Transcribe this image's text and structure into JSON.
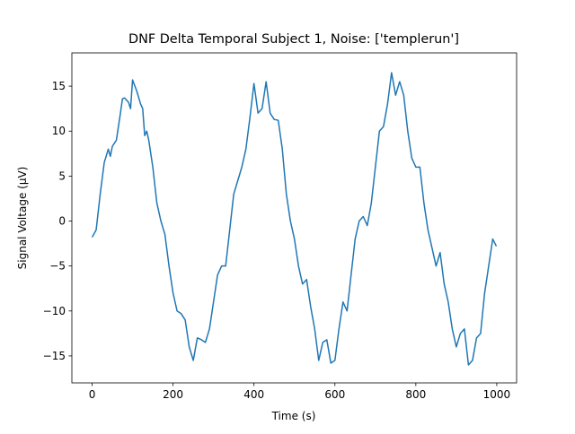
{
  "chart_data": {
    "type": "line",
    "title": "DNF Delta Temporal Subject 1, Noise: ['templerun']",
    "x_label": "Time (s)",
    "y_label": "Signal Voltage (μV)",
    "x": [
      0,
      10,
      20,
      30,
      40,
      45,
      50,
      60,
      70,
      75,
      80,
      90,
      95,
      100,
      110,
      120,
      125,
      130,
      135,
      140,
      150,
      160,
      170,
      180,
      190,
      200,
      210,
      220,
      230,
      240,
      250,
      260,
      270,
      280,
      290,
      300,
      310,
      320,
      330,
      340,
      350,
      360,
      370,
      380,
      390,
      400,
      410,
      420,
      430,
      440,
      450,
      460,
      470,
      480,
      490,
      500,
      510,
      520,
      530,
      540,
      550,
      560,
      570,
      580,
      590,
      600,
      610,
      620,
      630,
      640,
      650,
      660,
      670,
      680,
      690,
      700,
      710,
      720,
      730,
      740,
      750,
      760,
      770,
      780,
      790,
      800,
      810,
      820,
      830,
      840,
      850,
      860,
      870,
      880,
      890,
      900,
      910,
      920,
      930,
      940,
      950,
      960,
      970,
      980,
      990,
      999
    ],
    "series": [
      {
        "color": "#1f77b4",
        "values": [
          -1.8,
          -1,
          3,
          6.5,
          8,
          7.2,
          8.3,
          9,
          12,
          13.6,
          13.7,
          13.2,
          12.5,
          15.7,
          14.5,
          13,
          12.5,
          9.5,
          10,
          9,
          6,
          2,
          0,
          -1.5,
          -5,
          -8,
          -10,
          -10.3,
          -11,
          -14,
          -15.5,
          -13,
          -13.2,
          -13.5,
          -12,
          -9,
          -6,
          -5,
          -5,
          -1,
          3,
          4.5,
          6,
          8,
          11.5,
          15.3,
          12,
          12.5,
          15.5,
          12,
          11.3,
          11.2,
          8,
          3,
          0,
          -2,
          -5,
          -7,
          -6.5,
          -9.5,
          -12,
          -15.5,
          -13.5,
          -13.2,
          -15.8,
          -15.5,
          -12,
          -9,
          -10,
          -6,
          -2,
          0,
          0.5,
          -0.5,
          2,
          6,
          10,
          10.5,
          13,
          16.5,
          14,
          15.5,
          14,
          10,
          7,
          6,
          6,
          2,
          -1,
          -3,
          -5,
          -3.5,
          -7,
          -9,
          -12,
          -14,
          -12.5,
          -12,
          -16,
          -15.5,
          -13,
          -12.5,
          -8,
          -5,
          -2,
          -2.8
        ]
      }
    ],
    "xlim": [
      -50,
      1049
    ],
    "ylim": [
      -18,
      18.7
    ],
    "xticks": [
      0,
      200,
      400,
      600,
      800,
      1000
    ],
    "yticks": [
      {
        "value": -15,
        "label": "−15"
      },
      {
        "value": -10,
        "label": "−10"
      },
      {
        "value": -5,
        "label": "−5"
      },
      0,
      5,
      10,
      15
    ]
  }
}
